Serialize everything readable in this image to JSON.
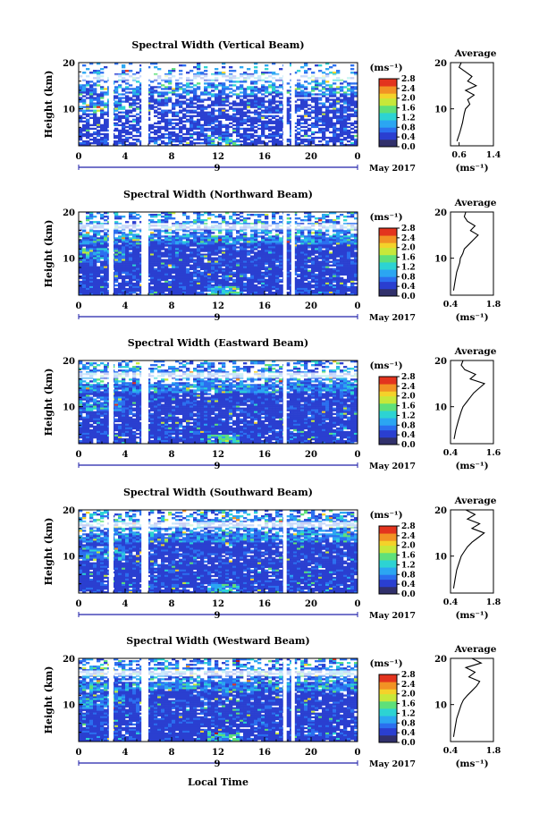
{
  "figure": {
    "x_axis_title": "Local Time",
    "date_label": "9",
    "month_label": "May 2017",
    "y_axis_label": "Height (km)",
    "colorbar_unit": "(ms⁻¹)",
    "colorbar_ticks": [
      "0.0",
      "0.4",
      "0.8",
      "1.2",
      "1.6",
      "2.0",
      "2.4",
      "2.8"
    ],
    "avg_title": "Average",
    "avg_xlabel": "(ms⁻¹)",
    "x_ticks": [
      "0",
      "4",
      "8",
      "12",
      "16",
      "20",
      "0"
    ],
    "y_ticks": [
      "10",
      "20"
    ]
  },
  "colors": {
    "colormap": [
      "#31306b",
      "#2a3fd0",
      "#2b6fef",
      "#2ba6f2",
      "#2dd3d3",
      "#5ee07a",
      "#c7e83a",
      "#f4d22a",
      "#f29224",
      "#e3341e",
      "#b61414"
    ]
  },
  "chart_data": [
    {
      "type": "heatmap",
      "title": "Spectral Width (Vertical Beam)",
      "xlabel": "Local Time",
      "ylabel": "Height (km)",
      "xlim": [
        0,
        24
      ],
      "ylim": [
        2,
        20
      ],
      "clim": [
        0.0,
        2.8
      ],
      "data_gaps_hours": [
        [
          2.6,
          3.0
        ],
        [
          5.4,
          6.0
        ],
        [
          17.6,
          17.9
        ],
        [
          18.3,
          18.6
        ]
      ],
      "average_profile": {
        "xlim": [
          0.4,
          1.4
        ],
        "xticks": [
          "0.6",
          "1.4"
        ],
        "height_km": [
          3,
          5,
          7,
          9,
          10,
          11,
          12,
          13,
          14,
          15,
          16,
          17,
          18,
          19,
          20
        ],
        "width_ms": [
          0.55,
          0.62,
          0.68,
          0.72,
          0.75,
          0.85,
          0.8,
          0.95,
          0.75,
          1.0,
          0.8,
          0.9,
          0.75,
          0.6,
          0.65
        ]
      }
    },
    {
      "type": "heatmap",
      "title": "Spectral Width (Northward Beam)",
      "xlabel": "Local Time",
      "ylabel": "Height (km)",
      "xlim": [
        0,
        24
      ],
      "ylim": [
        2,
        20
      ],
      "clim": [
        0.0,
        2.8
      ],
      "data_gaps_hours": [
        [
          2.6,
          3.0
        ],
        [
          5.4,
          6.0
        ],
        [
          17.6,
          17.9
        ],
        [
          18.3,
          18.6
        ]
      ],
      "average_profile": {
        "xlim": [
          0.4,
          1.8
        ],
        "xticks": [
          "0.4",
          "1.8"
        ],
        "height_km": [
          3,
          5,
          7,
          9,
          10,
          11,
          12,
          13,
          14,
          15,
          16,
          17,
          18,
          19,
          20
        ],
        "width_ms": [
          0.5,
          0.55,
          0.6,
          0.7,
          0.72,
          0.8,
          0.85,
          1.0,
          1.15,
          1.3,
          1.05,
          1.2,
          0.95,
          0.85,
          0.9
        ]
      }
    },
    {
      "type": "heatmap",
      "title": "Spectral Width (Eastward Beam)",
      "xlabel": "Local Time",
      "ylabel": "Height (km)",
      "xlim": [
        0,
        24
      ],
      "ylim": [
        2,
        20
      ],
      "clim": [
        0.0,
        2.8
      ],
      "data_gaps_hours": [
        [
          2.6,
          3.0
        ],
        [
          5.4,
          6.0
        ],
        [
          17.6,
          17.9
        ]
      ],
      "average_profile": {
        "xlim": [
          0.4,
          1.6
        ],
        "xticks": [
          "0.4",
          "1.6"
        ],
        "height_km": [
          3,
          5,
          7,
          9,
          10,
          11,
          12,
          13,
          14,
          15,
          16,
          17,
          18,
          19,
          20
        ],
        "width_ms": [
          0.5,
          0.55,
          0.62,
          0.7,
          0.75,
          0.85,
          0.95,
          1.05,
          1.2,
          1.35,
          0.95,
          1.1,
          0.8,
          0.7,
          0.75
        ]
      }
    },
    {
      "type": "heatmap",
      "title": "Spectral Width (Southward Beam)",
      "xlabel": "Local Time",
      "ylabel": "Height (km)",
      "xlim": [
        0,
        24
      ],
      "ylim": [
        2,
        20
      ],
      "clim": [
        0.0,
        2.8
      ],
      "data_gaps_hours": [
        [
          2.6,
          3.0
        ],
        [
          5.4,
          6.0
        ],
        [
          17.6,
          17.9
        ]
      ],
      "average_profile": {
        "xlim": [
          0.4,
          1.8
        ],
        "xticks": [
          "0.4",
          "1.8"
        ],
        "height_km": [
          3,
          5,
          7,
          9,
          10,
          11,
          12,
          13,
          14,
          15,
          16,
          17,
          18,
          19,
          20
        ],
        "width_ms": [
          0.5,
          0.55,
          0.6,
          0.7,
          0.75,
          0.85,
          0.95,
          1.1,
          1.3,
          1.5,
          1.1,
          1.35,
          0.95,
          1.2,
          0.9
        ]
      }
    },
    {
      "type": "heatmap",
      "title": "Spectral Width (Westward Beam)",
      "xlabel": "Local Time",
      "ylabel": "Height (km)",
      "xlim": [
        0,
        24
      ],
      "ylim": [
        2,
        20
      ],
      "clim": [
        0.0,
        2.8
      ],
      "data_gaps_hours": [
        [
          2.6,
          3.0
        ],
        [
          5.4,
          6.0
        ],
        [
          17.6,
          17.9
        ],
        [
          18.3,
          18.6
        ]
      ],
      "average_profile": {
        "xlim": [
          0.4,
          1.8
        ],
        "xticks": [
          "0.4",
          "1.8"
        ],
        "height_km": [
          3,
          5,
          7,
          9,
          10,
          11,
          12,
          13,
          14,
          15,
          16,
          17,
          18,
          19,
          20
        ],
        "width_ms": [
          0.5,
          0.55,
          0.6,
          0.7,
          0.75,
          0.82,
          0.95,
          1.1,
          1.25,
          1.35,
          1.0,
          1.2,
          0.9,
          1.4,
          1.1
        ]
      }
    }
  ]
}
